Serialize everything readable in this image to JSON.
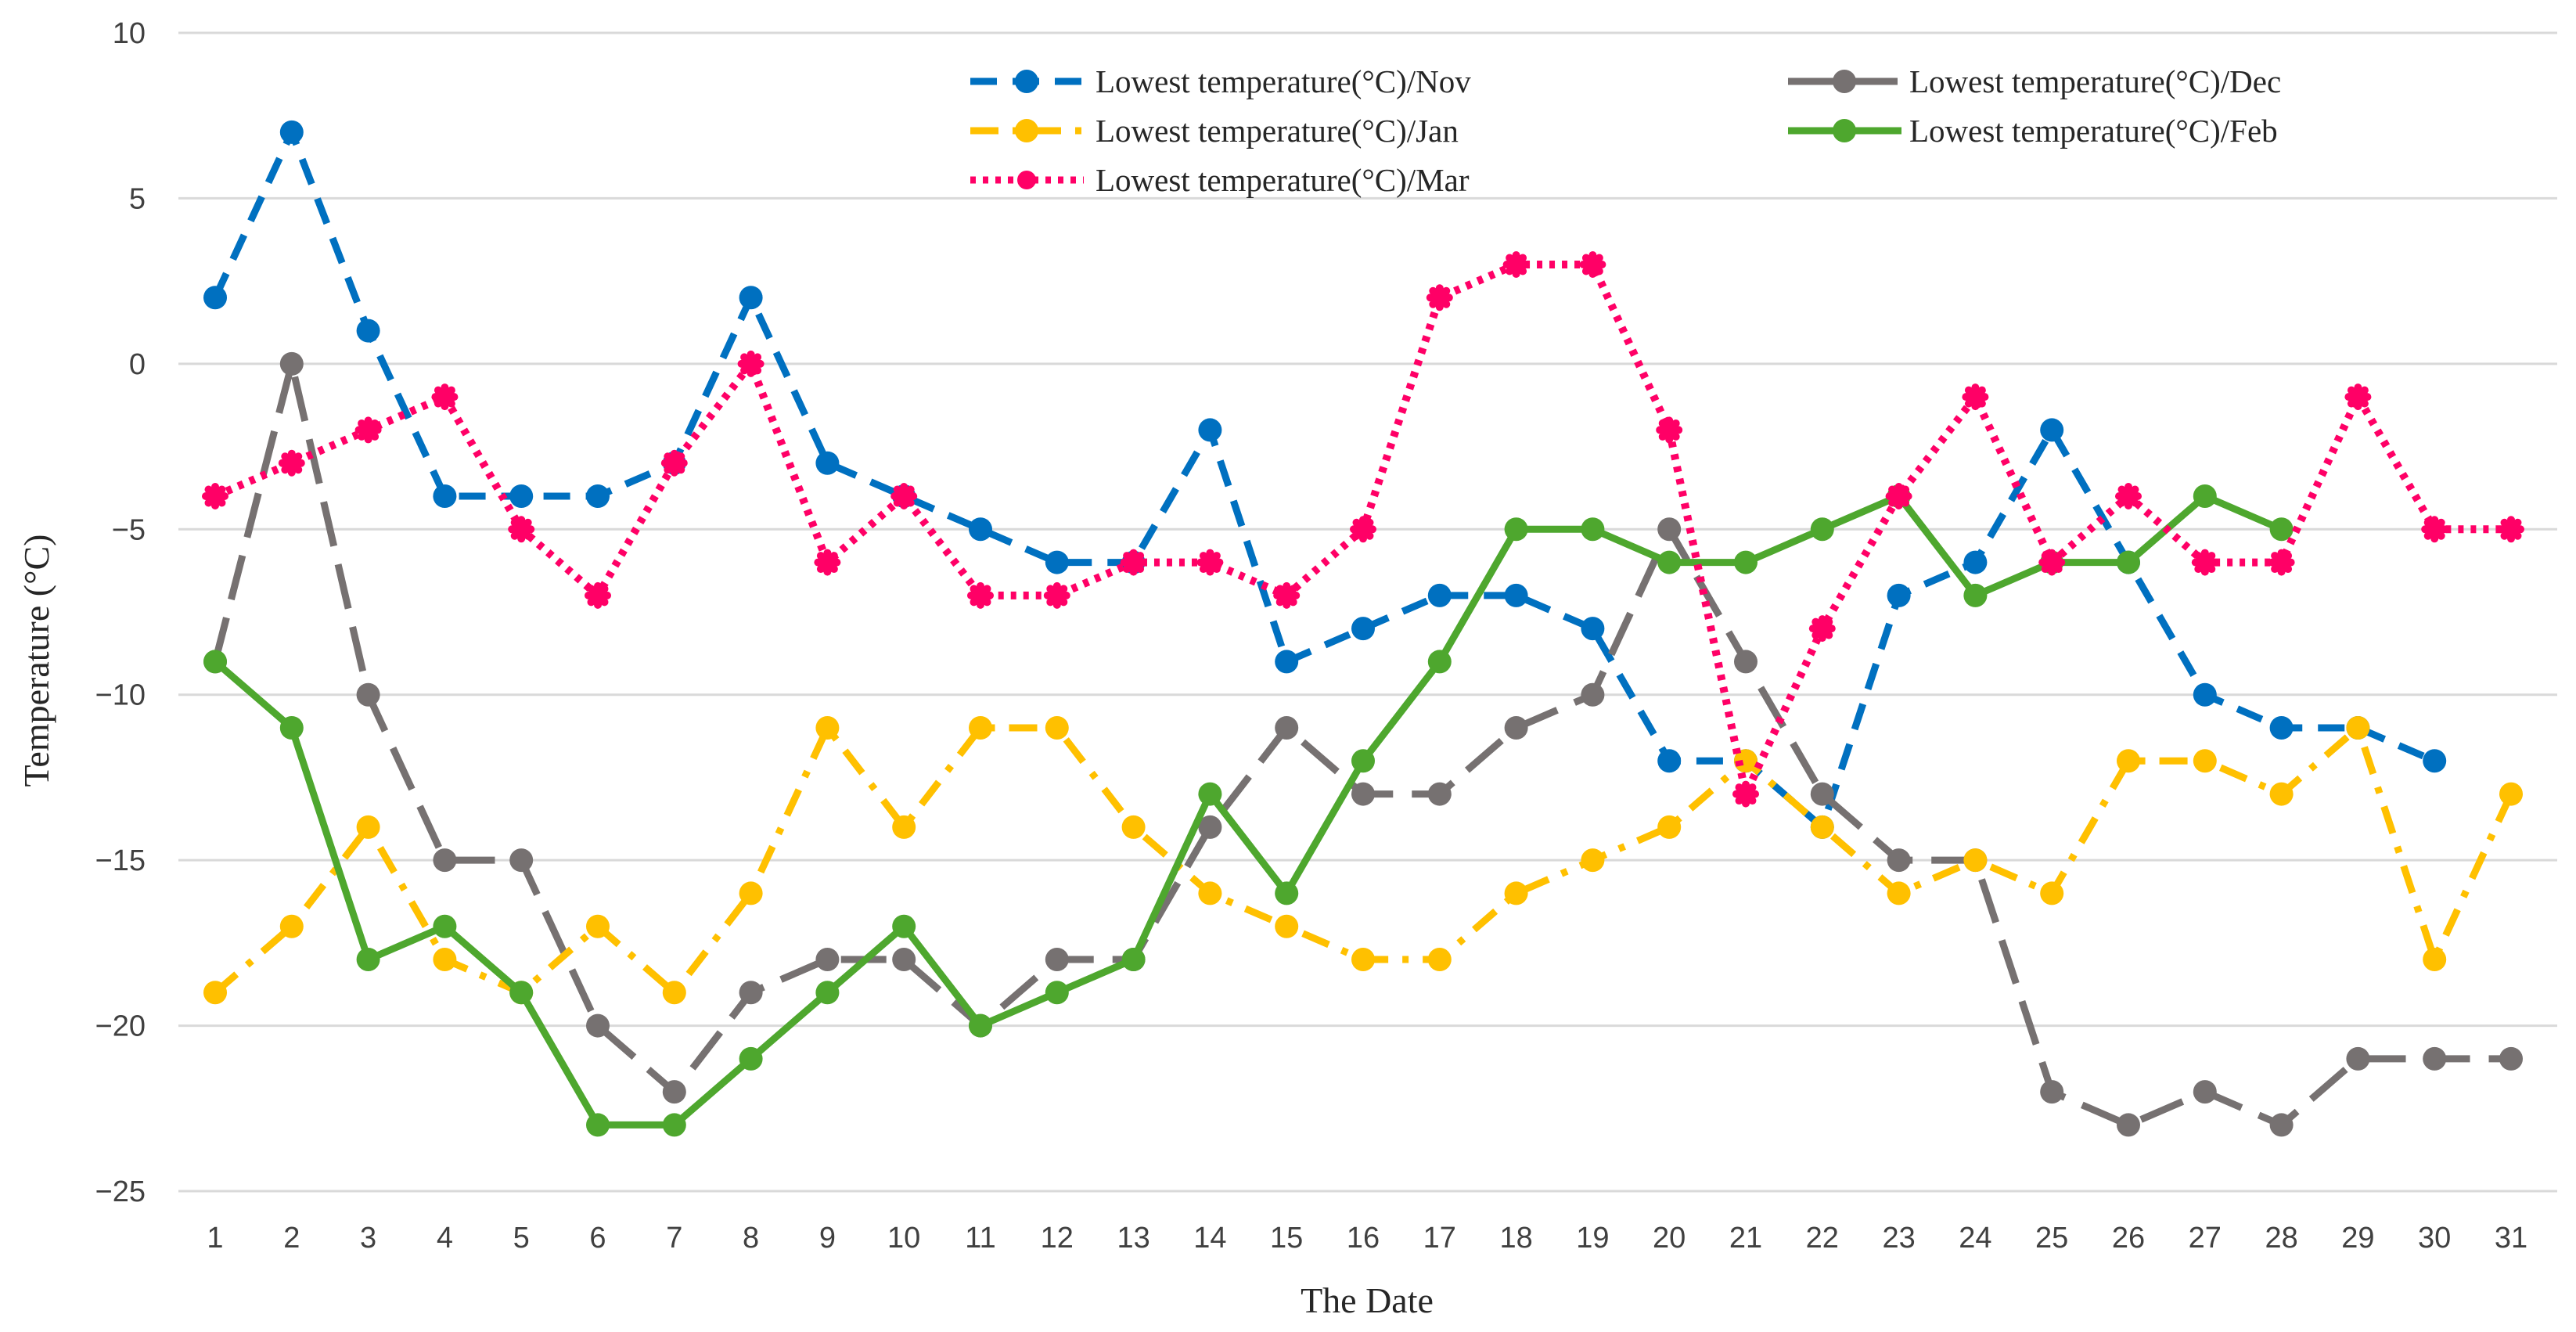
{
  "chart_data": {
    "type": "line",
    "title": "",
    "xlabel": "The Date",
    "ylabel": "Temperature (°C)",
    "ylim": [
      -25,
      10
    ],
    "ytick_step": 5,
    "x": [
      1,
      2,
      3,
      4,
      5,
      6,
      7,
      8,
      9,
      10,
      11,
      12,
      13,
      14,
      15,
      16,
      17,
      18,
      19,
      20,
      21,
      22,
      23,
      24,
      25,
      26,
      27,
      28,
      29,
      30,
      31
    ],
    "grid": "horizontal",
    "legend_position": "top-right",
    "series": [
      {
        "name": "Lowest temperature(°C)/Nov",
        "color": "#0070C0",
        "dash": "dashed",
        "values": [
          2,
          7,
          1,
          -4,
          -4,
          -4,
          -3,
          2,
          -3,
          -4,
          -5,
          -6,
          -6,
          -2,
          -9,
          -8,
          -7,
          -7,
          -8,
          -12,
          -12,
          -14,
          -7,
          -6,
          -2,
          -6,
          -10,
          -11,
          -11,
          -12,
          null
        ]
      },
      {
        "name": "Lowest temperature(°C)/Dec",
        "color": "#767171",
        "dash": "long-dash",
        "values": [
          -9,
          0,
          -10,
          -15,
          -15,
          -20,
          -22,
          -19,
          -18,
          -18,
          -20,
          -18,
          -18,
          -14,
          -11,
          -13,
          -13,
          -11,
          -10,
          -5,
          -9,
          -13,
          -15,
          -15,
          -22,
          -23,
          -22,
          -23,
          -21,
          -21,
          -21
        ]
      },
      {
        "name": "Lowest temperature(°C)/Jan",
        "color": "#FFC000",
        "dash": "dash-dot",
        "values": [
          -19,
          -17,
          -14,
          -18,
          -19,
          -17,
          -19,
          -16,
          -11,
          -14,
          -11,
          -11,
          -14,
          -16,
          -17,
          -18,
          -18,
          -16,
          -15,
          -14,
          -12,
          -14,
          -16,
          -15,
          -16,
          -12,
          -12,
          -13,
          -11,
          -18,
          -13
        ]
      },
      {
        "name": "Lowest temperature(°C)/Feb",
        "color": "#4EA72E",
        "dash": "solid",
        "values": [
          -9,
          -11,
          -18,
          -17,
          -19,
          -23,
          -23,
          -21,
          -19,
          -17,
          -20,
          -19,
          -18,
          -13,
          -16,
          -12,
          -9,
          -5,
          -5,
          -6,
          -6,
          -5,
          -4,
          -7,
          -6,
          -6,
          -4,
          -5,
          null,
          null,
          null
        ]
      },
      {
        "name": "Lowest temperature(°C)/Mar",
        "color": "#FF0066",
        "dash": "dotted",
        "values": [
          -4,
          -3,
          -2,
          -1,
          -5,
          -7,
          -3,
          0,
          -6,
          -4,
          -7,
          -7,
          -6,
          -6,
          -7,
          -5,
          2,
          3,
          3,
          -2,
          -13,
          -8,
          -4,
          -1,
          -6,
          -4,
          -6,
          -6,
          -1,
          -5,
          -5
        ]
      }
    ]
  }
}
